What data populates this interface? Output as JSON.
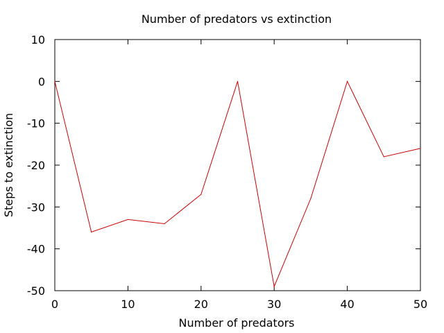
{
  "chart_data": {
    "type": "line",
    "title": "Number of predators vs extinction",
    "xlabel": "Number of predators",
    "ylabel": "Steps to extinction",
    "xlim": [
      0,
      50
    ],
    "ylim": [
      -50,
      10
    ],
    "xticks": [
      0,
      10,
      20,
      30,
      40,
      50
    ],
    "yticks": [
      -50,
      -40,
      -30,
      -20,
      -10,
      0,
      10
    ],
    "grid": false,
    "legend": "none",
    "series": [
      {
        "color": "#cc0000",
        "x": [
          0,
          5,
          10,
          15,
          20,
          25,
          30,
          35,
          40,
          45,
          50
        ],
        "y": [
          0,
          -36,
          -33,
          -34,
          -27,
          0,
          -49,
          -28,
          0,
          -18,
          -16
        ]
      }
    ]
  }
}
